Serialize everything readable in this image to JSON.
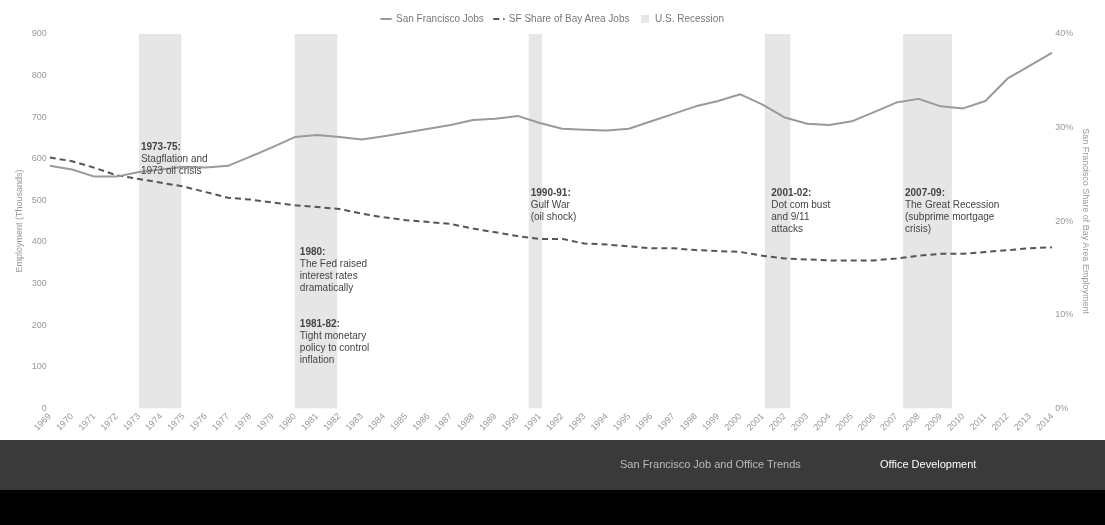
{
  "chart_data": {
    "type": "line",
    "ylabel": "Employment (Thousands)",
    "y2label": "San Francisco Share of Bay Area Employment",
    "x": [
      1969,
      1970,
      1971,
      1972,
      1973,
      1974,
      1975,
      1976,
      1977,
      1978,
      1979,
      1980,
      1981,
      1982,
      1983,
      1984,
      1985,
      1986,
      1987,
      1988,
      1989,
      1990,
      1991,
      1992,
      1993,
      1994,
      1995,
      1996,
      1997,
      1998,
      1999,
      2000,
      2001,
      2002,
      2003,
      2004,
      2005,
      2006,
      2007,
      2008,
      2009,
      2010,
      2011,
      2012,
      2013,
      2014
    ],
    "xlim": [
      1969,
      2014
    ],
    "xticks": [
      1969,
      1970,
      1971,
      1972,
      1973,
      1974,
      1975,
      1976,
      1977,
      1978,
      1979,
      1980,
      1981,
      1982,
      1983,
      1984,
      1985,
      1986,
      1987,
      1988,
      1989,
      1990,
      1991,
      1992,
      1993,
      1994,
      1995,
      1996,
      1997,
      1998,
      1999,
      2000,
      2001,
      2002,
      2003,
      2004,
      2005,
      2006,
      2007,
      2008,
      2009,
      2010,
      2011,
      2012,
      2013,
      2014
    ],
    "ylim": [
      0,
      900
    ],
    "yticks": [
      0,
      100,
      200,
      300,
      400,
      500,
      600,
      700,
      800,
      900
    ],
    "y2lim": [
      0,
      40
    ],
    "y2ticks": [
      {
        "value": 0,
        "label": "0%"
      },
      {
        "value": 10,
        "label": "10%"
      },
      {
        "value": 20,
        "label": "20%"
      },
      {
        "value": 30,
        "label": "30%"
      },
      {
        "value": 40,
        "label": "40%"
      }
    ],
    "series": [
      {
        "name": "San Francisco Jobs",
        "color": "#9a9a9a",
        "values": [
          583,
          574,
          557,
          557,
          568,
          574,
          581,
          579,
          583,
          605,
          628,
          652,
          657,
          652,
          646,
          654,
          663,
          672,
          681,
          693,
          696,
          703,
          686,
          672,
          670,
          668,
          672,
          690,
          708,
          726,
          739,
          755,
          730,
          699,
          684,
          681,
          690,
          712,
          735,
          744,
          726,
          721,
          739,
          793,
          824,
          855
        ]
      },
      {
        "name": "SF Share of Bay Area Jobs",
        "color": "#555555",
        "axis": "y2",
        "line_style": "dashed",
        "values": [
          26.8,
          26.4,
          25.7,
          24.9,
          24.5,
          24.1,
          23.7,
          23.1,
          22.5,
          22.3,
          22.0,
          21.7,
          21.5,
          21.3,
          20.8,
          20.4,
          20.1,
          19.9,
          19.7,
          19.2,
          18.8,
          18.4,
          18.1,
          18.1,
          17.6,
          17.5,
          17.3,
          17.1,
          17.1,
          16.9,
          16.8,
          16.7,
          16.3,
          16.0,
          15.9,
          15.8,
          15.8,
          15.8,
          16.0,
          16.3,
          16.5,
          16.5,
          16.7,
          16.9,
          17.1,
          17.2
        ]
      }
    ],
    "bands": [
      {
        "axis": "x",
        "from": 1973,
        "to": 1974.9,
        "label": "U.S. Recession",
        "color": "#e6e6e6"
      },
      {
        "axis": "x",
        "from": 1980,
        "to": 1981.9,
        "color": "#e6e6e6"
      },
      {
        "axis": "x",
        "from": 1990.5,
        "to": 1991.1,
        "color": "#e6e6e6"
      },
      {
        "axis": "x",
        "from": 2001.1,
        "to": 2002.25,
        "color": "#e6e6e6"
      },
      {
        "axis": "x",
        "from": 2007.3,
        "to": 2009.5,
        "color": "#e6e6e6"
      }
    ],
    "annotations": [
      {
        "text": "1973-75:\nStagflation and\n1973 oil crisis",
        "x": 1973,
        "y": 640
      },
      "1980:\nThe Fed raised\ninterest rates\ndramatically",
      "1981-82:\nTight monetary\npolicy to control\ninflation",
      {
        "text": "1990-91:\nGulf War\n(oil shock)",
        "x": 1990.5,
        "y": 530
      },
      {
        "text": "2001-02:\nDot com bust\nand 9/11\nattacks",
        "x": 2001.3,
        "y": 530
      },
      {
        "text": "2007-09:\nThe Great Recession\n(subprime mortgage\ncrisis)",
        "x": 2007.3,
        "y": 530
      },
      "San Francisco Job and Office Trends",
      "Office Development"
    ],
    "legend": "top",
    "marker": "none",
    "grid": false
  }
}
